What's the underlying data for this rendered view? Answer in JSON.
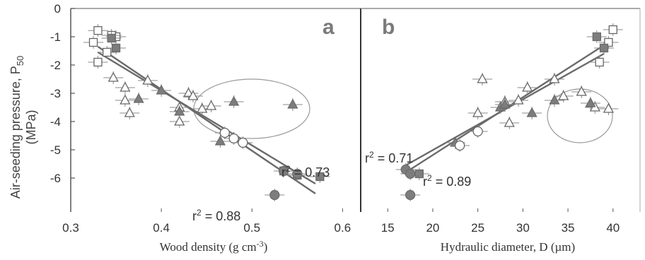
{
  "chart_data": [
    {
      "panel": "a",
      "type": "scatter",
      "xlabel": "Wood density (g cm-3)",
      "ylabel": "Air-seeding pressure, P50 (MPa)",
      "xlim": [
        0.3,
        0.62
      ],
      "ylim": [
        -7.2,
        0
      ],
      "xticks": [
        "0.3",
        "0.4",
        "0.5",
        "0.6"
      ],
      "yticks": [
        "0",
        "-1",
        "-2",
        "-3",
        "-4",
        "-5",
        "-6"
      ],
      "annotations": [
        "r2 = 0.73",
        "r2 = 0.88"
      ],
      "series": [
        {
          "marker": "open-square",
          "points": [
            [
              0.33,
              -0.78
            ],
            [
              0.325,
              -1.2
            ],
            [
              0.34,
              -1.55
            ],
            [
              0.33,
              -1.9
            ],
            [
              0.35,
              -1.0
            ],
            [
              0.345,
              -0.95
            ]
          ]
        },
        {
          "marker": "filled-square",
          "points": [
            [
              0.345,
              -1.05
            ],
            [
              0.35,
              -1.4
            ],
            [
              0.535,
              -5.75
            ],
            [
              0.55,
              -5.9
            ],
            [
              0.575,
              -5.95
            ]
          ]
        },
        {
          "marker": "open-triangle",
          "points": [
            [
              0.347,
              -2.45
            ],
            [
              0.36,
              -2.8
            ],
            [
              0.36,
              -3.25
            ],
            [
              0.365,
              -3.7
            ],
            [
              0.385,
              -2.55
            ],
            [
              0.42,
              -3.5
            ],
            [
              0.42,
              -4.0
            ],
            [
              0.43,
              -3.0
            ],
            [
              0.435,
              -3.1
            ],
            [
              0.445,
              -3.55
            ],
            [
              0.455,
              -3.45
            ]
          ]
        },
        {
          "marker": "filled-triangle",
          "points": [
            [
              0.375,
              -3.2
            ],
            [
              0.4,
              -2.9
            ],
            [
              0.42,
              -3.65
            ],
            [
              0.465,
              -4.7
            ],
            [
              0.48,
              -3.3
            ],
            [
              0.545,
              -3.4
            ]
          ]
        },
        {
          "marker": "open-circle",
          "points": [
            [
              0.47,
              -4.4
            ],
            [
              0.48,
              -4.6
            ],
            [
              0.49,
              -4.75
            ]
          ]
        },
        {
          "marker": "filled-circle",
          "points": [
            [
              0.535,
              -5.75
            ],
            [
              0.55,
              -5.85
            ],
            [
              0.525,
              -6.6
            ]
          ]
        }
      ],
      "fits": [
        {
          "label": "r2 = 0.73",
          "x": [
            0.33,
            0.57
          ],
          "y": [
            -1.55,
            -6.2
          ]
        },
        {
          "label": "r2 = 0.88",
          "x": [
            0.33,
            0.57
          ],
          "y": [
            -1.35,
            -6.55
          ]
        }
      ]
    },
    {
      "panel": "b",
      "type": "scatter",
      "xlabel": "Hydraulic diameter, D (µm)",
      "ylabel": "",
      "xlim": [
        12,
        43
      ],
      "ylim": [
        -7.2,
        0
      ],
      "xticks": [
        "15",
        "20",
        "25",
        "30",
        "35",
        "40"
      ],
      "yticks": [],
      "annotations": [
        "r2 = 0.71",
        "r2 = 0.89"
      ],
      "series": [
        {
          "marker": "open-square",
          "points": [
            [
              40,
              -0.75
            ],
            [
              39.5,
              -1.2
            ],
            [
              38.5,
              -1.9
            ]
          ]
        },
        {
          "marker": "filled-square",
          "points": [
            [
              38.2,
              -1.0
            ],
            [
              39,
              -1.4
            ],
            [
              18.5,
              -5.85
            ]
          ]
        },
        {
          "marker": "open-triangle",
          "points": [
            [
              25.5,
              -2.5
            ],
            [
              25,
              -3.7
            ],
            [
              30.5,
              -2.8
            ],
            [
              28,
              -3.3
            ],
            [
              29.5,
              -3.25
            ],
            [
              33.5,
              -2.5
            ],
            [
              34.5,
              -3.1
            ],
            [
              36.5,
              -2.95
            ],
            [
              38,
              -3.5
            ],
            [
              39.5,
              -3.55
            ],
            [
              28.5,
              -4.05
            ]
          ]
        },
        {
          "marker": "filled-triangle",
          "points": [
            [
              22.5,
              -4.75
            ],
            [
              27.5,
              -3.5
            ],
            [
              28,
              -3.4
            ],
            [
              31,
              -3.7
            ],
            [
              33.5,
              -3.25
            ],
            [
              37.5,
              -3.35
            ]
          ]
        },
        {
          "marker": "open-circle",
          "points": [
            [
              23,
              -4.85
            ],
            [
              25,
              -4.35
            ]
          ]
        },
        {
          "marker": "filled-circle",
          "points": [
            [
              17,
              -5.7
            ],
            [
              17.5,
              -5.85
            ],
            [
              17.5,
              -6.6
            ]
          ]
        }
      ],
      "fits": [
        {
          "label": "r2 = 0.71",
          "x": [
            17,
            39
          ],
          "y": [
            -5.55,
            -1.6
          ]
        },
        {
          "label": "r2 = 0.89",
          "x": [
            17,
            39
          ],
          "y": [
            -5.8,
            -1.3
          ]
        }
      ]
    }
  ],
  "labels": {
    "y_axis_line1": "Air-seeding pressure, P",
    "y_axis_sub": "50",
    "y_axis_line2": "(MPa)",
    "x_axis_a": "Wood density (g cm",
    "x_axis_a_sup": "-3",
    "x_axis_a_end": ")",
    "x_axis_b": "Hydraulic diameter, D (µm)",
    "panel_a": "a",
    "panel_b": "b",
    "r2_a_upper": "r",
    "r2_a_upper_val": " = 0.73",
    "r2_a_lower": "r",
    "r2_a_lower_val": " = 0.88",
    "r2_b_upper": "r",
    "r2_b_upper_val": " = 0.71",
    "r2_b_lower": "r",
    "r2_b_lower_val": " = 0.89",
    "r2_sup": "2"
  },
  "colors": {
    "axis": "#555555",
    "open_fill": "#ffffff",
    "open_stroke": "#666666",
    "filled": "#7d7d7d",
    "fit_line": "#6a6a6a",
    "ellipse": "#9a9a9a",
    "errorbar": "#888888"
  }
}
